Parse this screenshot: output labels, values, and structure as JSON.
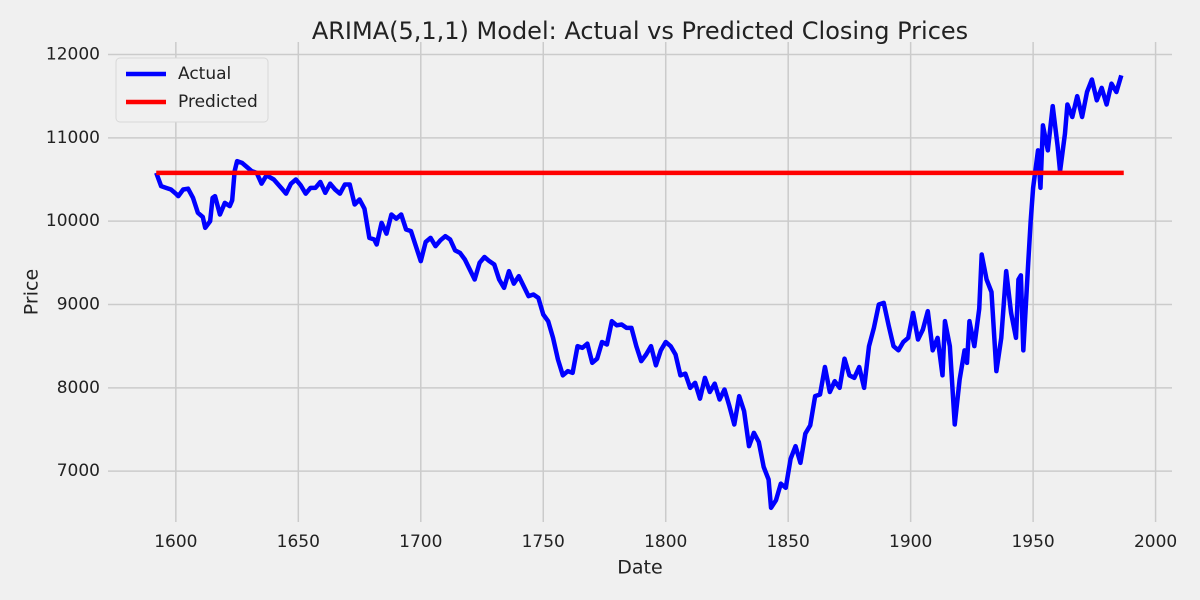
{
  "chart_data": {
    "type": "line",
    "title": "ARIMA(5,1,1) Model: Actual vs Predicted Closing Prices",
    "x_label": "Date",
    "y_label": "Price",
    "xlim": [
      1572.3,
      2006.7
    ],
    "ylim": [
      6390,
      12150
    ],
    "xticks": [
      1600,
      1650,
      1700,
      1750,
      1800,
      1850,
      1900,
      1950,
      2000
    ],
    "yticks": [
      7000,
      8000,
      9000,
      10000,
      11000,
      12000
    ],
    "grid": true,
    "legend": "upper left",
    "series": [
      {
        "name": "Actual",
        "color": "#0000ff",
        "x": [
          1592,
          1594,
          1596,
          1598,
          1600,
          1601,
          1603,
          1605,
          1607,
          1609,
          1611,
          1612,
          1614,
          1615,
          1616,
          1618,
          1620,
          1622,
          1623,
          1624,
          1625,
          1627,
          1629,
          1631,
          1633,
          1635,
          1637,
          1640,
          1643,
          1645,
          1647,
          1649,
          1651,
          1653,
          1655,
          1657,
          1659,
          1661,
          1663,
          1665,
          1667,
          1669,
          1671,
          1673,
          1675,
          1677,
          1679,
          1681,
          1682,
          1684,
          1686,
          1688,
          1690,
          1692,
          1694,
          1696,
          1698,
          1700,
          1702,
          1704,
          1706,
          1708,
          1710,
          1712,
          1714,
          1716,
          1718,
          1720,
          1722,
          1724,
          1726,
          1728,
          1730,
          1732,
          1734,
          1736,
          1738,
          1740,
          1742,
          1744,
          1746,
          1748,
          1750,
          1752,
          1754,
          1756,
          1758,
          1760,
          1762,
          1764,
          1766,
          1768,
          1770,
          1772,
          1774,
          1776,
          1778,
          1780,
          1782,
          1784,
          1786,
          1788,
          1790,
          1792,
          1794,
          1796,
          1798,
          1800,
          1802,
          1804,
          1806,
          1808,
          1810,
          1812,
          1814,
          1816,
          1818,
          1820,
          1822,
          1824,
          1826,
          1828,
          1830,
          1832,
          1834,
          1836,
          1838,
          1840,
          1842,
          1843,
          1845,
          1847,
          1849,
          1851,
          1853,
          1855,
          1857,
          1859,
          1861,
          1863,
          1865,
          1867,
          1869,
          1871,
          1873,
          1875,
          1877,
          1879,
          1881,
          1883,
          1885,
          1887,
          1889,
          1891,
          1893,
          1895,
          1897,
          1899,
          1901,
          1903,
          1905,
          1907,
          1909,
          1911,
          1913,
          1914,
          1916,
          1918,
          1920,
          1922,
          1923,
          1924,
          1926,
          1928,
          1929,
          1931,
          1933,
          1935,
          1937,
          1939,
          1941,
          1943,
          1944,
          1945,
          1946,
          1948,
          1949,
          1950,
          1952,
          1953,
          1954,
          1956,
          1958,
          1960,
          1961,
          1963,
          1964,
          1966,
          1968,
          1970,
          1972,
          1974,
          1976,
          1978,
          1980,
          1982,
          1984,
          1986
        ],
        "values": [
          10580,
          10420,
          10400,
          10380,
          10330,
          10300,
          10380,
          10390,
          10280,
          10100,
          10050,
          9920,
          10000,
          10280,
          10300,
          10080,
          10220,
          10180,
          10250,
          10600,
          10720,
          10700,
          10650,
          10600,
          10580,
          10450,
          10550,
          10500,
          10400,
          10330,
          10450,
          10500,
          10430,
          10330,
          10400,
          10400,
          10470,
          10340,
          10450,
          10380,
          10330,
          10440,
          10440,
          10200,
          10260,
          10150,
          9800,
          9780,
          9720,
          9980,
          9850,
          10080,
          10030,
          10080,
          9900,
          9880,
          9700,
          9520,
          9750,
          9800,
          9700,
          9770,
          9820,
          9780,
          9650,
          9620,
          9540,
          9420,
          9300,
          9500,
          9570,
          9520,
          9480,
          9300,
          9200,
          9400,
          9250,
          9340,
          9220,
          9100,
          9120,
          9080,
          8880,
          8800,
          8600,
          8340,
          8150,
          8200,
          8180,
          8500,
          8480,
          8530,
          8300,
          8350,
          8550,
          8520,
          8800,
          8750,
          8760,
          8720,
          8720,
          8500,
          8320,
          8400,
          8500,
          8270,
          8450,
          8550,
          8500,
          8400,
          8150,
          8170,
          8000,
          8060,
          7870,
          8120,
          7950,
          8050,
          7860,
          7980,
          7780,
          7560,
          7900,
          7720,
          7300,
          7460,
          7350,
          7050,
          6900,
          6560,
          6650,
          6850,
          6800,
          7150,
          7300,
          7100,
          7450,
          7550,
          7900,
          7920,
          8250,
          7950,
          8080,
          8000,
          8350,
          8150,
          8120,
          8250,
          8000,
          8500,
          8720,
          9000,
          9020,
          8750,
          8500,
          8450,
          8550,
          8600,
          8900,
          8580,
          8700,
          8920,
          8450,
          8600,
          8150,
          8800,
          8500,
          7560,
          8100,
          8450,
          8300,
          8800,
          8500,
          8950,
          9600,
          9300,
          9150,
          8200,
          8600,
          9400,
          8900,
          8600,
          9300,
          9350,
          8450,
          9500,
          10000,
          10400,
          10850,
          10400,
          11150,
          10850,
          11380,
          10900,
          10600,
          11050,
          11400,
          11250,
          11500,
          11250,
          11550,
          11700,
          11450,
          11600,
          11400,
          11650,
          11550,
          11750
        ]
      },
      {
        "name": "Predicted",
        "color": "#ff0000",
        "x": [
          1592,
          1987
        ],
        "values": [
          10580,
          10580
        ]
      }
    ]
  }
}
